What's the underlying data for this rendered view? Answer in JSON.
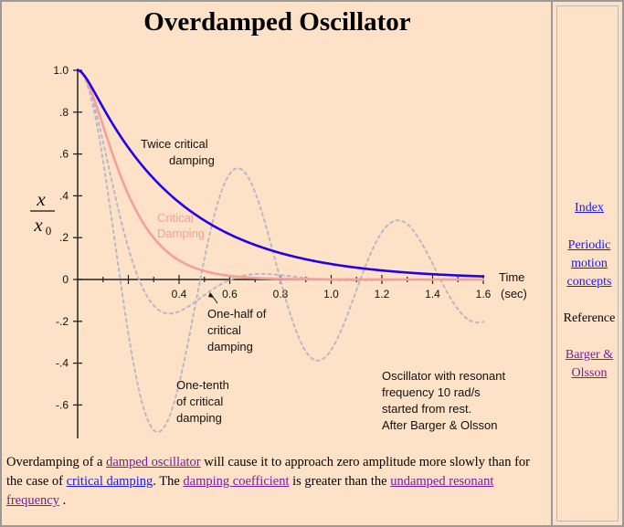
{
  "page": {
    "title": "Overdamped Oscillator"
  },
  "description": {
    "t1": "Overdamping of a ",
    "l1": "damped oscillator",
    "t2": " will cause it to approach zero amplitude more slowly than for the case of ",
    "l2": "critical damping",
    "t3": ". The ",
    "l3": "damping coefficient",
    "t4": " is greater than the ",
    "l4": "undamped resonant frequency",
    "t5": " ."
  },
  "nav": {
    "index": "Index",
    "periodic": "Periodic motion concepts",
    "reference": "Reference",
    "barger": "Barger & Olsson"
  },
  "colors": {
    "twice": "#2200e8",
    "critical": "#f4a09a",
    "dashed": "#b8b8c8",
    "axis": "#222222",
    "link_visited": "#7a1aa0",
    "link": "#1a1aee"
  },
  "chart_data": {
    "type": "line",
    "xlabel": "Time",
    "xunit": "(sec)",
    "ylabel_num": "x",
    "ylabel_den": "x",
    "ylabel_den_sub": "0",
    "xlim": [
      0,
      1.6
    ],
    "ylim": [
      -0.7,
      1.0
    ],
    "x_ticks": [
      {
        "v": 0.4,
        "label": "0.4"
      },
      {
        "v": 0.6,
        "label": "0.6"
      },
      {
        "v": 0.8,
        "label": "0.8"
      },
      {
        "v": 1.0,
        "label": "1.0"
      },
      {
        "v": 1.2,
        "label": "1.2"
      },
      {
        "v": 1.4,
        "label": "1.4"
      },
      {
        "v": 1.6,
        "label": "1.6"
      }
    ],
    "y_ticks": [
      {
        "v": 1.0,
        "label": "1.0"
      },
      {
        "v": 0.8,
        "label": ".8"
      },
      {
        "v": 0.6,
        "label": ".6"
      },
      {
        "v": 0.4,
        "label": ".4"
      },
      {
        "v": 0.2,
        "label": ".2"
      },
      {
        "v": 0.0,
        "label": "0"
      },
      {
        "v": -0.2,
        "label": "-.2"
      },
      {
        "v": -0.4,
        "label": "-.4"
      },
      {
        "v": -0.6,
        "label": "-.6"
      }
    ],
    "omega0": 10,
    "series": [
      {
        "name": "Twice critical damping",
        "zeta": 2.0,
        "style": "solid",
        "color": "#2200e8"
      },
      {
        "name": "Critical Damping",
        "zeta": 1.0,
        "style": "solid",
        "color": "#f4a09a"
      },
      {
        "name": "One-half of critical damping",
        "zeta": 0.5,
        "style": "dashed",
        "color": "#b8b8c8"
      },
      {
        "name": "One-tenth of critical damping",
        "zeta": 0.1,
        "style": "dashed",
        "color": "#b8b8c8"
      }
    ],
    "annotations": {
      "twice_1": "Twice critical",
      "twice_2": "damping",
      "crit_1": "Critical",
      "crit_2": "Damping",
      "half_1": "One-half of",
      "half_2": "critical",
      "half_3": "damping",
      "tenth_1": "One-tenth",
      "tenth_2": "of critical",
      "tenth_3": "damping",
      "note_1": "Oscillator with resonant",
      "note_2": "frequency 10 rad/s",
      "note_3": "started from rest.",
      "note_4": "After Barger & Olsson"
    }
  }
}
